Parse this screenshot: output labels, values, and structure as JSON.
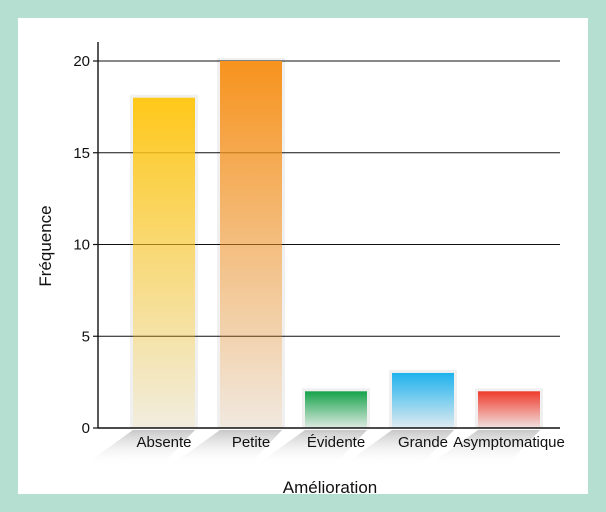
{
  "chart_data": {
    "type": "bar",
    "categories": [
      "Absente",
      "Petite",
      "Évidente",
      "Grande",
      "Asymptomatique"
    ],
    "values": [
      18,
      20,
      2,
      3,
      2
    ],
    "ylabel": "Fréquence",
    "xlabel": "Amélioration",
    "ylim": [
      0,
      20
    ],
    "yticks": [
      0,
      5,
      10,
      15,
      20
    ],
    "grid": true,
    "colors": [
      "#ffc81a",
      "#f7931e",
      "#16a34a",
      "#1fb2ee",
      "#ef3b2c"
    ]
  },
  "colors": {
    "border": "#b5dfd0",
    "background": "#ffffff"
  }
}
